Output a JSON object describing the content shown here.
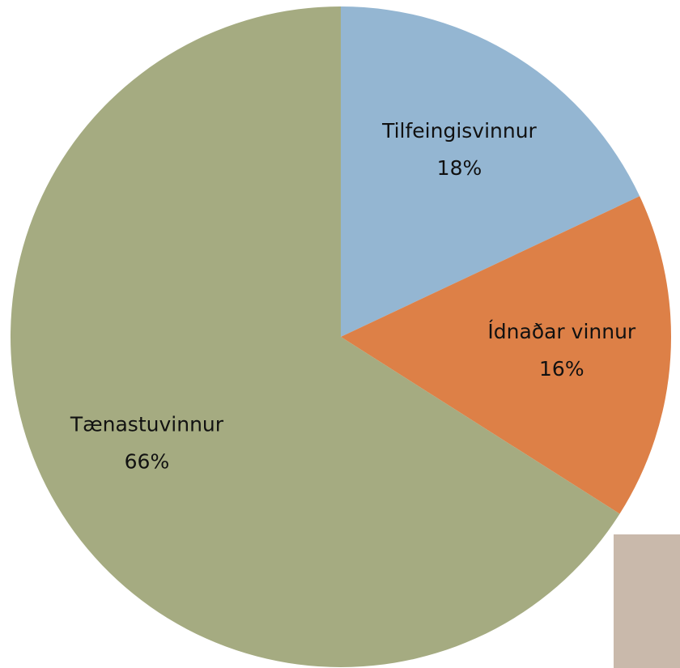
{
  "chart_data": {
    "type": "pie",
    "categories": [
      "Tilfeingisvinnur",
      "Ídnaðar vinnur",
      "Tænastuvinnur"
    ],
    "values": [
      18,
      16,
      66
    ],
    "value_labels": [
      "18%",
      "16%",
      "66%"
    ],
    "colors": [
      "#94b6d2",
      "#dd8047",
      "#a5ab81"
    ]
  }
}
